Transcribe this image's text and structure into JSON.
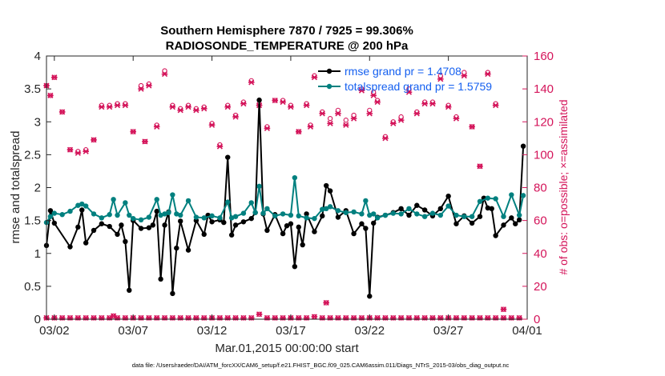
{
  "title_line1": "Southern Hemisphere 7870 / 7925 = 99.306%",
  "title_line2": "RADIOSONDE_TEMPERATURE @ 200 hPa",
  "xlabel": "Mar.01,2015 00:00:00 start",
  "ylabel_left": "rmse and totalspread",
  "ylabel_right": "# of obs: o=possible; ×=assimilated",
  "footnote": "data file: /Users/raeder/DAI/ATM_forcXX/CAM6_setup/f.e21.FHIST_BGC.f09_025.CAM6assim.011/Diags_NTrS_2015-03/obs_diag_output.nc",
  "legend": [
    "rmse grand pr = 1.4708",
    "totalspread grand pr = 1.5759"
  ],
  "colors": {
    "rmse": "#000000",
    "spread": "#00807f",
    "obs": "#d4145a",
    "legend_text": "#1560f0"
  },
  "chart_data": {
    "type": "line",
    "x_units": "days since Mar.01,2015 00:00:00",
    "xlim": [
      0.5,
      31.0
    ],
    "x_ticks": [
      1,
      6,
      11,
      16,
      21,
      26,
      31
    ],
    "x_tick_labels": [
      "03/02",
      "03/07",
      "03/12",
      "03/17",
      "03/22",
      "03/27",
      "04/01"
    ],
    "ylim": [
      0,
      4
    ],
    "y_ticks": [
      0,
      0.5,
      1,
      1.5,
      2,
      2.5,
      3,
      3.5,
      4
    ],
    "y_tick_labels": [
      "0",
      "0.5",
      "1",
      "1.5",
      "2",
      "2.5",
      "3",
      "3.5",
      "4"
    ],
    "y2lim": [
      0,
      160
    ],
    "y2_ticks": [
      0,
      20,
      40,
      60,
      80,
      100,
      120,
      140,
      160
    ],
    "y2_tick_labels": [
      "0",
      "20",
      "40",
      "60",
      "80",
      "100",
      "120",
      "140",
      "160"
    ],
    "rmse": [
      [
        0.5,
        1.12
      ],
      [
        0.75,
        1.65
      ],
      [
        1.0,
        1.46
      ],
      [
        2.0,
        1.1
      ],
      [
        2.5,
        1.4
      ],
      [
        2.75,
        1.66
      ],
      [
        3.0,
        1.16
      ],
      [
        3.5,
        1.35
      ],
      [
        4.0,
        1.45
      ],
      [
        4.5,
        1.41
      ],
      [
        5.0,
        1.29
      ],
      [
        5.25,
        1.43
      ],
      [
        5.5,
        1.18
      ],
      [
        5.75,
        0.44
      ],
      [
        6.0,
        1.5
      ],
      [
        6.5,
        1.38
      ],
      [
        7.0,
        1.39
      ],
      [
        7.25,
        1.43
      ],
      [
        7.5,
        1.64
      ],
      [
        7.75,
        0.61
      ],
      [
        8.0,
        1.43
      ],
      [
        8.25,
        1.63
      ],
      [
        8.5,
        0.39
      ],
      [
        8.75,
        1.08
      ],
      [
        9.0,
        1.49
      ],
      [
        9.5,
        1.05
      ],
      [
        10.0,
        1.5
      ],
      [
        10.5,
        1.29
      ],
      [
        10.75,
        1.58
      ],
      [
        11.0,
        1.48
      ],
      [
        11.5,
        1.51
      ],
      [
        11.75,
        1.47
      ],
      [
        12.0,
        2.46
      ],
      [
        12.25,
        1.28
      ],
      [
        12.5,
        1.43
      ],
      [
        13.0,
        1.48
      ],
      [
        13.5,
        1.53
      ],
      [
        13.75,
        1.62
      ],
      [
        14.0,
        3.33
      ],
      [
        14.25,
        1.6
      ],
      [
        14.5,
        1.35
      ],
      [
        15.0,
        1.59
      ],
      [
        15.5,
        1.3
      ],
      [
        15.75,
        1.42
      ],
      [
        16.0,
        1.45
      ],
      [
        16.25,
        0.8
      ],
      [
        16.5,
        1.4
      ],
      [
        16.75,
        1.13
      ],
      [
        17.0,
        1.6
      ],
      [
        17.5,
        1.33
      ],
      [
        18.0,
        1.57
      ],
      [
        18.25,
        2.03
      ],
      [
        18.5,
        1.95
      ],
      [
        19.0,
        1.55
      ],
      [
        19.5,
        1.65
      ],
      [
        20.0,
        1.3
      ],
      [
        20.5,
        1.45
      ],
      [
        20.75,
        1.38
      ],
      [
        21.0,
        0.35
      ],
      [
        21.25,
        1.46
      ],
      [
        21.5,
        1.55
      ],
      [
        22.0,
        1.58
      ],
      [
        22.5,
        1.62
      ],
      [
        23.0,
        1.68
      ],
      [
        23.5,
        1.58
      ],
      [
        24.0,
        1.73
      ],
      [
        24.5,
        1.66
      ],
      [
        25.0,
        1.57
      ],
      [
        25.5,
        1.68
      ],
      [
        26.0,
        1.87
      ],
      [
        26.5,
        1.45
      ],
      [
        27.0,
        1.57
      ],
      [
        27.5,
        1.46
      ],
      [
        28.0,
        1.56
      ],
      [
        28.25,
        1.84
      ],
      [
        28.5,
        1.69
      ],
      [
        28.75,
        1.68
      ],
      [
        29.0,
        1.27
      ],
      [
        29.5,
        1.43
      ],
      [
        30.0,
        1.54
      ],
      [
        30.25,
        1.45
      ],
      [
        30.5,
        1.51
      ],
      [
        30.75,
        2.63
      ]
    ],
    "totalspread": [
      [
        0.5,
        1.47
      ],
      [
        0.75,
        1.56
      ],
      [
        1.0,
        1.61
      ],
      [
        1.5,
        1.59
      ],
      [
        2.0,
        1.64
      ],
      [
        2.5,
        1.73
      ],
      [
        2.75,
        1.75
      ],
      [
        3.0,
        1.72
      ],
      [
        3.5,
        1.6
      ],
      [
        4.0,
        1.54
      ],
      [
        4.5,
        1.59
      ],
      [
        4.75,
        1.82
      ],
      [
        5.0,
        1.58
      ],
      [
        5.5,
        1.77
      ],
      [
        5.75,
        1.58
      ],
      [
        6.0,
        1.53
      ],
      [
        6.5,
        1.51
      ],
      [
        7.0,
        1.55
      ],
      [
        7.5,
        1.82
      ],
      [
        7.75,
        1.58
      ],
      [
        8.0,
        1.6
      ],
      [
        8.25,
        1.62
      ],
      [
        8.5,
        1.89
      ],
      [
        8.75,
        1.6
      ],
      [
        9.0,
        1.58
      ],
      [
        9.5,
        1.8
      ],
      [
        10.0,
        1.55
      ],
      [
        10.5,
        1.54
      ],
      [
        11.0,
        1.57
      ],
      [
        11.5,
        1.54
      ],
      [
        12.0,
        1.78
      ],
      [
        12.25,
        1.54
      ],
      [
        12.5,
        1.56
      ],
      [
        13.0,
        1.61
      ],
      [
        13.5,
        1.77
      ],
      [
        13.75,
        1.62
      ],
      [
        14.0,
        2.02
      ],
      [
        14.25,
        1.61
      ],
      [
        14.5,
        1.68
      ],
      [
        15.0,
        1.57
      ],
      [
        15.5,
        1.6
      ],
      [
        16.0,
        1.58
      ],
      [
        16.25,
        2.15
      ],
      [
        16.5,
        1.57
      ],
      [
        17.0,
        1.54
      ],
      [
        17.5,
        1.53
      ],
      [
        18.0,
        1.67
      ],
      [
        18.25,
        1.68
      ],
      [
        18.5,
        1.71
      ],
      [
        19.0,
        1.65
      ],
      [
        19.5,
        1.62
      ],
      [
        20.0,
        1.63
      ],
      [
        20.5,
        1.6
      ],
      [
        20.75,
        1.8
      ],
      [
        21.0,
        1.58
      ],
      [
        21.25,
        1.6
      ],
      [
        21.5,
        1.54
      ],
      [
        22.0,
        1.58
      ],
      [
        22.5,
        1.61
      ],
      [
        23.0,
        1.6
      ],
      [
        23.5,
        1.68
      ],
      [
        24.0,
        1.6
      ],
      [
        24.5,
        1.56
      ],
      [
        25.0,
        1.61
      ],
      [
        25.5,
        1.58
      ],
      [
        26.0,
        1.72
      ],
      [
        26.5,
        1.58
      ],
      [
        27.0,
        1.56
      ],
      [
        27.5,
        1.56
      ],
      [
        28.0,
        1.79
      ],
      [
        28.5,
        1.84
      ],
      [
        29.0,
        1.83
      ],
      [
        29.5,
        1.56
      ],
      [
        30.0,
        1.89
      ],
      [
        30.5,
        1.58
      ],
      [
        30.75,
        1.88
      ]
    ],
    "obs_possible": [
      [
        0.5,
        142
      ],
      [
        0.75,
        136
      ],
      [
        1.0,
        147
      ],
      [
        1.5,
        126
      ],
      [
        2.0,
        103
      ],
      [
        2.5,
        102
      ],
      [
        3.0,
        103
      ],
      [
        3.5,
        109
      ],
      [
        4.0,
        130
      ],
      [
        4.5,
        130
      ],
      [
        5.0,
        131
      ],
      [
        5.5,
        131
      ],
      [
        6.0,
        114
      ],
      [
        6.5,
        142
      ],
      [
        6.75,
        108
      ],
      [
        7.0,
        143
      ],
      [
        7.5,
        118
      ],
      [
        8.0,
        151
      ],
      [
        8.5,
        130
      ],
      [
        9.0,
        128
      ],
      [
        9.5,
        130
      ],
      [
        10.0,
        128
      ],
      [
        10.5,
        129
      ],
      [
        11.0,
        119
      ],
      [
        11.5,
        106
      ],
      [
        12.0,
        130
      ],
      [
        12.5,
        124
      ],
      [
        13.0,
        132
      ],
      [
        13.5,
        145
      ],
      [
        14.0,
        131
      ],
      [
        14.5,
        117
      ],
      [
        15.0,
        133
      ],
      [
        15.5,
        133
      ],
      [
        16.0,
        130
      ],
      [
        16.5,
        114
      ],
      [
        17.0,
        131
      ],
      [
        17.25,
        118
      ],
      [
        17.5,
        148
      ],
      [
        18.0,
        126
      ],
      [
        18.5,
        122
      ],
      [
        19.0,
        127
      ],
      [
        19.5,
        121
      ],
      [
        20.0,
        124
      ],
      [
        20.5,
        140
      ],
      [
        21.0,
        127
      ],
      [
        21.25,
        138
      ],
      [
        21.5,
        133
      ],
      [
        22.0,
        111
      ],
      [
        22.5,
        120
      ],
      [
        23.0,
        123
      ],
      [
        23.5,
        140
      ],
      [
        24.0,
        126
      ],
      [
        24.5,
        132
      ],
      [
        25.0,
        132
      ],
      [
        25.5,
        148
      ],
      [
        26.0,
        130
      ],
      [
        26.5,
        123
      ],
      [
        27.0,
        150
      ],
      [
        27.5,
        117
      ],
      [
        28.0,
        93
      ],
      [
        28.5,
        150
      ],
      [
        29.0,
        131
      ],
      [
        29.5,
        6
      ]
    ],
    "obs_assimilated": [
      [
        0.5,
        142
      ],
      [
        0.75,
        136
      ],
      [
        1.0,
        147
      ],
      [
        1.5,
        126
      ],
      [
        2.0,
        103
      ],
      [
        2.5,
        101
      ],
      [
        3.0,
        102
      ],
      [
        3.5,
        109
      ],
      [
        4.0,
        129
      ],
      [
        4.5,
        129
      ],
      [
        5.0,
        130
      ],
      [
        5.5,
        130
      ],
      [
        6.0,
        114
      ],
      [
        6.5,
        140
      ],
      [
        6.75,
        108
      ],
      [
        7.0,
        142
      ],
      [
        7.5,
        117
      ],
      [
        8.0,
        149
      ],
      [
        8.5,
        129
      ],
      [
        9.0,
        127
      ],
      [
        9.5,
        129
      ],
      [
        10.0,
        127
      ],
      [
        10.5,
        128
      ],
      [
        11.0,
        118
      ],
      [
        11.5,
        105
      ],
      [
        12.0,
        129
      ],
      [
        12.5,
        123
      ],
      [
        13.0,
        131
      ],
      [
        13.5,
        144
      ],
      [
        14.0,
        130
      ],
      [
        14.5,
        116
      ],
      [
        15.0,
        133
      ],
      [
        15.5,
        132
      ],
      [
        16.0,
        129
      ],
      [
        16.5,
        114
      ],
      [
        17.0,
        130
      ],
      [
        17.25,
        117
      ],
      [
        17.5,
        147
      ],
      [
        18.0,
        125
      ],
      [
        18.5,
        119
      ],
      [
        19.0,
        125
      ],
      [
        19.5,
        118
      ],
      [
        20.0,
        122
      ],
      [
        20.5,
        139
      ],
      [
        21.0,
        125
      ],
      [
        21.25,
        136
      ],
      [
        21.5,
        132
      ],
      [
        22.0,
        110
      ],
      [
        22.5,
        119
      ],
      [
        23.0,
        121
      ],
      [
        23.5,
        138
      ],
      [
        24.0,
        125
      ],
      [
        24.5,
        131
      ],
      [
        25.0,
        131
      ],
      [
        25.5,
        146
      ],
      [
        26.0,
        129
      ],
      [
        26.5,
        122
      ],
      [
        27.0,
        148
      ],
      [
        27.5,
        117
      ],
      [
        28.0,
        93
      ],
      [
        28.5,
        149
      ],
      [
        29.0,
        130
      ],
      [
        29.5,
        6
      ]
    ],
    "obs_bottom": {
      "x_start": 0.5,
      "x_step": 0.5,
      "count": 61,
      "default": 0.8,
      "overrides": [
        [
          4.75,
          2.0
        ],
        [
          14.0,
          3.0
        ],
        [
          17.5,
          1.5
        ],
        [
          18.25,
          10.0
        ]
      ]
    }
  }
}
